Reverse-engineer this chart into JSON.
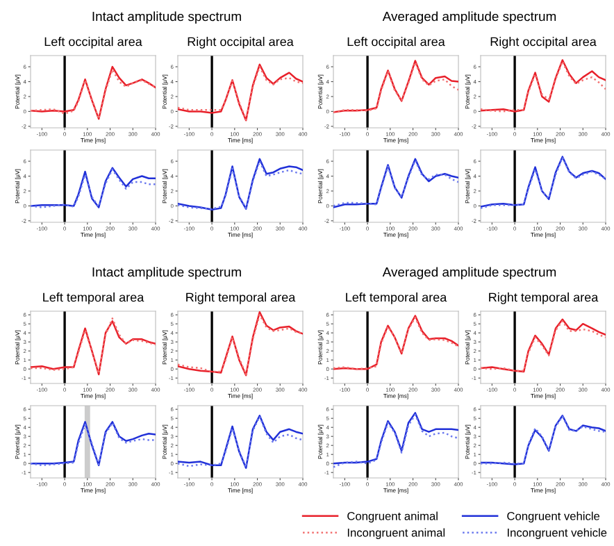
{
  "chart_data": [
    {
      "type": "line",
      "subtitle": "Intact amplitude spectrum",
      "title": "Left occipital area",
      "xlabel": "Time [ms]",
      "ylabel": "Potential [μV]",
      "x": [
        -150,
        -100,
        -50,
        0,
        40,
        60,
        90,
        120,
        150,
        180,
        210,
        240,
        270,
        300,
        340,
        370,
        400
      ],
      "xlim": [
        -150,
        400
      ],
      "xticks": [
        -100,
        0,
        100,
        200,
        300,
        400
      ],
      "ylim": [
        -2.2,
        7.5
      ],
      "yticks": [
        -2,
        0,
        2,
        4,
        6
      ],
      "ref_lines": [
        {
          "axis": "x",
          "value": 0,
          "color": "#000000"
        }
      ],
      "series": [
        {
          "color": "#e8202a",
          "line_style": "solid",
          "values": [
            0.1,
            0,
            0.1,
            0,
            0.2,
            1.5,
            4.3,
            1.5,
            -1,
            3,
            6,
            4.5,
            3.5,
            3.8,
            4.3,
            3.8,
            3.2
          ]
        },
        {
          "color": "#f27070",
          "line_style": "dotted",
          "values": [
            0.1,
            0.2,
            0.3,
            -0.3,
            0.1,
            1.3,
            4.2,
            1.6,
            -1,
            2.8,
            5.6,
            4.0,
            3.3,
            3.8,
            4.2,
            3.7,
            3.3
          ]
        }
      ]
    },
    {
      "type": "line",
      "title": "Right occipital area",
      "xlabel": "Time [ms]",
      "ylabel": "Potential [μV]",
      "x": [
        -150,
        -100,
        -50,
        0,
        40,
        60,
        90,
        120,
        150,
        180,
        210,
        240,
        270,
        300,
        340,
        370,
        400
      ],
      "xlim": [
        -150,
        400
      ],
      "xticks": [
        -100,
        0,
        100,
        200,
        300,
        400
      ],
      "ylim": [
        -2.2,
        7.5
      ],
      "yticks": [
        -2,
        0,
        2,
        4,
        6
      ],
      "ref_lines": [
        {
          "axis": "x",
          "value": 0,
          "color": "#000000"
        }
      ],
      "series": [
        {
          "color": "#e8202a",
          "line_style": "solid",
          "values": [
            0.3,
            0,
            0,
            -0.2,
            0,
            1.5,
            4.2,
            1,
            -1.2,
            3.5,
            6.3,
            4.5,
            3.7,
            4.5,
            5.2,
            4.4,
            4
          ]
        },
        {
          "color": "#f27070",
          "line_style": "dotted",
          "values": [
            0.5,
            0.2,
            0.2,
            0.2,
            0.2,
            1.4,
            4.1,
            1.2,
            -1.1,
            3.3,
            6,
            4.2,
            3.6,
            4.3,
            4.5,
            4,
            3.8
          ]
        }
      ]
    },
    {
      "type": "line",
      "subtitle": "Averaged amplitude spectrum",
      "title": "Left occipital area",
      "xlabel": "Time [ms]",
      "ylabel": "Potential [μV]",
      "x": [
        -150,
        -100,
        -50,
        0,
        40,
        60,
        90,
        120,
        150,
        180,
        210,
        240,
        270,
        300,
        340,
        370,
        400
      ],
      "xlim": [
        -150,
        400
      ],
      "xticks": [
        -100,
        0,
        100,
        200,
        300,
        400
      ],
      "ylim": [
        -2.2,
        7.5
      ],
      "yticks": [
        -2,
        0,
        2,
        4,
        6
      ],
      "ref_lines": [
        {
          "axis": "x",
          "value": 0,
          "color": "#000000"
        }
      ],
      "series": [
        {
          "color": "#e8202a",
          "line_style": "solid",
          "values": [
            -0.1,
            0.1,
            0.1,
            0.2,
            0.5,
            3,
            5.5,
            3,
            1.4,
            4,
            6.8,
            4.5,
            3.6,
            4.5,
            4.7,
            4.1,
            4
          ]
        },
        {
          "color": "#f27070",
          "line_style": "dotted",
          "values": [
            -0.1,
            0.2,
            0.2,
            0.1,
            0.4,
            2.8,
            5.4,
            2.8,
            1.5,
            3.8,
            6.6,
            4.3,
            3.5,
            4.1,
            4.3,
            3.4,
            2.9
          ]
        }
      ]
    },
    {
      "type": "line",
      "title": "Right occipital area",
      "xlabel": "Time [ms]",
      "ylabel": "Potential [μV]",
      "x": [
        -150,
        -100,
        -50,
        0,
        40,
        60,
        90,
        120,
        150,
        180,
        210,
        240,
        270,
        300,
        340,
        370,
        400
      ],
      "xlim": [
        -150,
        400
      ],
      "xticks": [
        -100,
        0,
        100,
        200,
        300,
        400
      ],
      "ylim": [
        -2.2,
        7.5
      ],
      "yticks": [
        -2,
        0,
        2,
        4,
        6
      ],
      "ref_lines": [
        {
          "axis": "x",
          "value": 0,
          "color": "#000000"
        }
      ],
      "series": [
        {
          "color": "#e8202a",
          "line_style": "solid",
          "values": [
            0.1,
            0.2,
            0.3,
            0,
            0.2,
            2.8,
            5.2,
            2,
            1.3,
            4.5,
            6.9,
            5,
            3.8,
            4.6,
            5.4,
            4.6,
            4.2
          ]
        },
        {
          "color": "#f27070",
          "line_style": "dotted",
          "values": [
            0.3,
            0.1,
            0,
            0.2,
            0.2,
            2.6,
            5,
            2.3,
            1.6,
            4.3,
            6.7,
            4.7,
            3.7,
            4.2,
            4.6,
            3.9,
            3.0
          ]
        }
      ]
    },
    {
      "type": "line",
      "xlabel": "Time [ms]",
      "ylabel": "Potential [μV]",
      "x": [
        -150,
        -100,
        -50,
        0,
        40,
        60,
        90,
        120,
        150,
        180,
        210,
        240,
        270,
        300,
        340,
        370,
        400
      ],
      "xlim": [
        -150,
        400
      ],
      "xticks": [
        -100,
        0,
        100,
        200,
        300,
        400
      ],
      "ylim": [
        -2.2,
        7.5
      ],
      "yticks": [
        -2,
        0,
        2,
        4,
        6
      ],
      "ref_lines": [
        {
          "axis": "x",
          "value": 0,
          "color": "#000000"
        }
      ],
      "series": [
        {
          "color": "#2030d8",
          "line_style": "solid",
          "values": [
            0,
            0.1,
            0.1,
            0.1,
            0,
            1.5,
            4.6,
            1,
            -0.2,
            3.3,
            5.1,
            3.8,
            2.6,
            3.6,
            4,
            3.7,
            3.7
          ]
        },
        {
          "color": "#6a78ee",
          "line_style": "dotted",
          "values": [
            0,
            -0.2,
            0,
            0.2,
            -0.1,
            1.2,
            4.2,
            1.2,
            -0.1,
            3,
            4.9,
            3.5,
            2.3,
            3.2,
            3.2,
            2.9,
            2.9
          ]
        }
      ]
    },
    {
      "type": "line",
      "xlabel": "Time [ms]",
      "ylabel": "Potential [μV]",
      "x": [
        -150,
        -100,
        -50,
        0,
        40,
        60,
        90,
        120,
        150,
        180,
        210,
        240,
        270,
        300,
        340,
        370,
        400
      ],
      "xlim": [
        -150,
        400
      ],
      "xticks": [
        -100,
        0,
        100,
        200,
        300,
        400
      ],
      "ylim": [
        -2.2,
        7.5
      ],
      "yticks": [
        -2,
        0,
        2,
        4,
        6
      ],
      "ref_lines": [
        {
          "axis": "x",
          "value": 0,
          "color": "#000000"
        }
      ],
      "series": [
        {
          "color": "#2030d8",
          "line_style": "solid",
          "values": [
            0.3,
            0,
            -0.2,
            -0.5,
            -0.3,
            1.5,
            5.3,
            1.2,
            -0.4,
            3.5,
            6.3,
            4.3,
            4.5,
            5,
            5.3,
            5.2,
            4.8
          ]
        },
        {
          "color": "#6a78ee",
          "line_style": "dotted",
          "values": [
            0.1,
            -0.2,
            -0.3,
            -0.4,
            -0.1,
            1.3,
            5,
            1.3,
            -0.3,
            3.3,
            6,
            4,
            4.2,
            4.5,
            4.8,
            4.5,
            4.3
          ]
        }
      ]
    },
    {
      "type": "line",
      "xlabel": "Time [ms]",
      "ylabel": "Potential [μV]",
      "x": [
        -150,
        -100,
        -50,
        0,
        40,
        60,
        90,
        120,
        150,
        180,
        210,
        240,
        270,
        300,
        340,
        370,
        400
      ],
      "xlim": [
        -150,
        400
      ],
      "xticks": [
        -100,
        0,
        100,
        200,
        300,
        400
      ],
      "ylim": [
        -2.2,
        7.5
      ],
      "yticks": [
        -2,
        0,
        2,
        4,
        6
      ],
      "ref_lines": [
        {
          "axis": "x",
          "value": 0,
          "color": "#000000"
        }
      ],
      "series": [
        {
          "color": "#2030d8",
          "line_style": "solid",
          "values": [
            -0.2,
            0.2,
            0.2,
            0.3,
            0.3,
            2.5,
            5.5,
            2.5,
            1.1,
            4,
            6.3,
            4.3,
            3.3,
            4,
            4.3,
            4,
            3.8
          ]
        },
        {
          "color": "#6a78ee",
          "line_style": "dotted",
          "values": [
            0,
            0.4,
            0.4,
            0.3,
            0.2,
            2.3,
            5.3,
            2.4,
            1.2,
            3.8,
            6.1,
            4.1,
            3.6,
            4.2,
            4.2,
            3.6,
            3.2
          ]
        }
      ]
    },
    {
      "type": "line",
      "xlabel": "Time [ms]",
      "ylabel": "Potential [μV]",
      "x": [
        -150,
        -100,
        -50,
        0,
        40,
        60,
        90,
        120,
        150,
        180,
        210,
        240,
        270,
        300,
        340,
        370,
        400
      ],
      "xlim": [
        -150,
        400
      ],
      "xticks": [
        -100,
        0,
        100,
        200,
        300,
        400
      ],
      "ylim": [
        -2.2,
        7.5
      ],
      "yticks": [
        -2,
        0,
        2,
        4,
        6
      ],
      "ref_lines": [
        {
          "axis": "x",
          "value": 0,
          "color": "#000000"
        }
      ],
      "series": [
        {
          "color": "#2030d8",
          "line_style": "solid",
          "values": [
            -0.1,
            0.2,
            0.3,
            0.1,
            0.2,
            2.5,
            5.2,
            2,
            0.9,
            4.5,
            6.6,
            4.6,
            3.8,
            4.4,
            4.7,
            4.4,
            3.6
          ]
        },
        {
          "color": "#6a78ee",
          "line_style": "dotted",
          "values": [
            -0.3,
            0.1,
            0.1,
            0.1,
            0.2,
            2.3,
            4.9,
            2,
            1,
            4.2,
            6.5,
            4.5,
            3.7,
            4.2,
            4.6,
            4.2,
            3.6
          ]
        }
      ]
    },
    {
      "type": "line",
      "subtitle": "Intact amplitude spectrum",
      "title": "Left temporal area",
      "xlabel": "Time [ms]",
      "ylabel": "Potential [μV]",
      "legend": "bottom right",
      "x": [
        -150,
        -100,
        -50,
        0,
        40,
        60,
        90,
        120,
        150,
        180,
        210,
        240,
        270,
        300,
        340,
        370,
        400
      ],
      "xlim": [
        -150,
        400
      ],
      "xticks": [
        -100,
        0,
        100,
        200,
        300,
        400
      ],
      "ylim": [
        -1.6,
        6.4
      ],
      "yticks": [
        -1,
        0,
        1,
        2,
        3,
        4,
        5,
        6
      ],
      "ref_lines": [
        {
          "axis": "x",
          "value": 0,
          "color": "#000000"
        }
      ],
      "series": [
        {
          "name": "Congruent animal",
          "color": "#e8202a",
          "line_style": "solid",
          "values": [
            0.2,
            0.3,
            0,
            0.2,
            0.2,
            2,
            4.5,
            2,
            -0.6,
            4,
            5.3,
            3.5,
            2.8,
            3.3,
            3.3,
            3,
            2.8
          ]
        },
        {
          "name": "Incongruent animal",
          "color": "#f27070",
          "line_style": "dotted",
          "values": [
            0.1,
            0.1,
            -0.1,
            0,
            0.2,
            1.8,
            4.3,
            2,
            -0.5,
            3.8,
            5.6,
            3.8,
            2.8,
            3.2,
            3.1,
            2.9,
            2.7
          ]
        }
      ]
    },
    {
      "type": "line",
      "title": "Right temporal area",
      "xlabel": "Time [ms]",
      "ylabel": "Potential [μV]",
      "x": [
        -150,
        -100,
        -50,
        0,
        40,
        60,
        90,
        120,
        150,
        180,
        210,
        240,
        270,
        300,
        340,
        370,
        400
      ],
      "xlim": [
        -150,
        400
      ],
      "xticks": [
        -100,
        0,
        100,
        200,
        300,
        400
      ],
      "ylim": [
        -1.6,
        6.4
      ],
      "yticks": [
        -1,
        0,
        1,
        2,
        3,
        4,
        5,
        6
      ],
      "ref_lines": [
        {
          "axis": "x",
          "value": 0,
          "color": "#000000"
        }
      ],
      "series": [
        {
          "color": "#e8202a",
          "line_style": "solid",
          "values": [
            0.3,
            0,
            -0.2,
            -0.3,
            -0.4,
            1.2,
            3.6,
            1,
            -0.7,
            3.5,
            6.3,
            4.8,
            4.3,
            4.6,
            4.7,
            4.2,
            3.9
          ]
        },
        {
          "color": "#f27070",
          "line_style": "dotted",
          "values": [
            0.5,
            0.2,
            0.1,
            -0.3,
            -0.3,
            1,
            3.5,
            1.2,
            -0.6,
            3.3,
            6,
            4.6,
            4.2,
            4.3,
            4.5,
            4.1,
            3.9
          ]
        }
      ]
    },
    {
      "type": "line",
      "subtitle": "Averaged amplitude spectrum",
      "title": "Left temporal area",
      "xlabel": "Time [ms]",
      "ylabel": "Potential [μV]",
      "x": [
        -150,
        -100,
        -50,
        0,
        40,
        60,
        90,
        120,
        150,
        180,
        210,
        240,
        270,
        300,
        340,
        370,
        400
      ],
      "xlim": [
        -150,
        400
      ],
      "xticks": [
        -100,
        0,
        100,
        200,
        300,
        400
      ],
      "ylim": [
        -1.6,
        6.4
      ],
      "yticks": [
        -1,
        0,
        1,
        2,
        3,
        4,
        5,
        6
      ],
      "ref_lines": [
        {
          "axis": "x",
          "value": 0,
          "color": "#000000"
        }
      ],
      "series": [
        {
          "color": "#e8202a",
          "line_style": "solid",
          "values": [
            0,
            0.1,
            0,
            0,
            0.5,
            3,
            4.8,
            3.5,
            1.7,
            4.5,
            5.9,
            4.2,
            3.3,
            3.4,
            3.4,
            3.1,
            2.6
          ]
        },
        {
          "color": "#f27070",
          "line_style": "dotted",
          "values": [
            0.1,
            0.2,
            0,
            0.1,
            0.3,
            2.8,
            4.7,
            3.5,
            1.8,
            4.4,
            5.7,
            4,
            3.2,
            3.3,
            3.2,
            2.9,
            2.5
          ]
        }
      ]
    },
    {
      "type": "line",
      "title": "Right temporal area",
      "xlabel": "Time [ms]",
      "ylabel": "Potential [μV]",
      "x": [
        -150,
        -100,
        -50,
        0,
        40,
        60,
        90,
        120,
        150,
        180,
        210,
        240,
        270,
        300,
        340,
        370,
        400
      ],
      "xlim": [
        -150,
        400
      ],
      "xticks": [
        -100,
        0,
        100,
        200,
        300,
        400
      ],
      "ylim": [
        -1.6,
        6.4
      ],
      "yticks": [
        -1,
        0,
        1,
        2,
        3,
        4,
        5,
        6
      ],
      "ref_lines": [
        {
          "axis": "x",
          "value": 0,
          "color": "#000000"
        }
      ],
      "series": [
        {
          "color": "#e8202a",
          "line_style": "solid",
          "values": [
            0.1,
            0.2,
            0,
            -0.2,
            -0.3,
            2,
            3.7,
            2.8,
            1.6,
            4.5,
            5.5,
            4.5,
            4.3,
            5,
            4.5,
            4.1,
            3.8
          ]
        },
        {
          "color": "#f27070",
          "line_style": "dotted",
          "values": [
            0.1,
            0,
            0.1,
            -0.2,
            -0.2,
            1.8,
            3.5,
            2.6,
            1.5,
            4.3,
            5.3,
            4.2,
            4.2,
            4.4,
            4.2,
            3.8,
            3.5
          ]
        }
      ]
    },
    {
      "type": "line",
      "xlabel": "Time [ms]",
      "ylabel": "Potential [μV]",
      "legend": "bottom right",
      "x": [
        -150,
        -100,
        -50,
        0,
        40,
        60,
        90,
        120,
        150,
        180,
        210,
        240,
        270,
        300,
        340,
        370,
        400
      ],
      "xlim": [
        -150,
        400
      ],
      "xticks": [
        -100,
        0,
        100,
        200,
        300,
        400
      ],
      "ylim": [
        -1.6,
        6.4
      ],
      "yticks": [
        -1,
        0,
        1,
        2,
        3,
        4,
        5,
        6
      ],
      "ref_lines": [
        {
          "axis": "x",
          "value": 0,
          "color": "#000000"
        }
      ],
      "bands": [
        {
          "axis": "x",
          "from": 88,
          "to": 112,
          "color": "#cccccc"
        }
      ],
      "series": [
        {
          "name": "Congruent vehicle",
          "color": "#2030d8",
          "line_style": "solid",
          "values": [
            0,
            0,
            0,
            0.1,
            0.2,
            2.5,
            4.6,
            2,
            -0.2,
            3.5,
            4.6,
            3,
            2.5,
            2.7,
            3.1,
            3.3,
            3.2
          ]
        },
        {
          "name": "Incongruent vehicle",
          "color": "#6a78ee",
          "line_style": "dotted",
          "values": [
            0,
            -0.2,
            -0.1,
            0,
            0.1,
            2.2,
            4.3,
            2.2,
            -0.1,
            3.3,
            4.5,
            2.8,
            2.3,
            2.5,
            2.7,
            2.6,
            2.6
          ]
        }
      ]
    },
    {
      "type": "line",
      "xlabel": "Time [ms]",
      "ylabel": "Potential [μV]",
      "x": [
        -150,
        -100,
        -50,
        0,
        40,
        60,
        90,
        120,
        150,
        180,
        210,
        240,
        270,
        300,
        340,
        370,
        400
      ],
      "xlim": [
        -150,
        400
      ],
      "xticks": [
        -100,
        0,
        100,
        200,
        300,
        400
      ],
      "ylim": [
        -1.6,
        6.4
      ],
      "yticks": [
        -1,
        0,
        1,
        2,
        3,
        4,
        5,
        6
      ],
      "ref_lines": [
        {
          "axis": "x",
          "value": 0,
          "color": "#000000"
        }
      ],
      "series": [
        {
          "color": "#2030d8",
          "line_style": "solid",
          "values": [
            0.2,
            0.1,
            0.2,
            -0.2,
            -0.2,
            1.5,
            4.1,
            1.3,
            -0.5,
            3.8,
            5.3,
            3.5,
            2.6,
            3.5,
            3.8,
            3.5,
            3.3
          ]
        },
        {
          "color": "#6a78ee",
          "line_style": "dotted",
          "values": [
            0,
            -0.3,
            -0.1,
            -0.2,
            0,
            1.3,
            3.9,
            1.4,
            -0.4,
            3.6,
            5.2,
            3.3,
            2.3,
            3.0,
            3.2,
            2.8,
            2.6
          ]
        }
      ]
    },
    {
      "type": "line",
      "xlabel": "Time [ms]",
      "ylabel": "Potential [μV]",
      "x": [
        -150,
        -100,
        -50,
        0,
        40,
        60,
        90,
        120,
        150,
        180,
        210,
        240,
        270,
        300,
        340,
        370,
        400
      ],
      "xlim": [
        -150,
        400
      ],
      "xticks": [
        -100,
        0,
        100,
        200,
        300,
        400
      ],
      "ylim": [
        -1.6,
        6.4
      ],
      "yticks": [
        -1,
        0,
        1,
        2,
        3,
        4,
        5,
        6
      ],
      "ref_lines": [
        {
          "axis": "x",
          "value": 0,
          "color": "#000000"
        }
      ],
      "series": [
        {
          "color": "#2030d8",
          "line_style": "solid",
          "values": [
            0,
            0.1,
            0.1,
            0.2,
            0.5,
            2.5,
            4.7,
            3.5,
            1.4,
            4.5,
            5.6,
            3.8,
            3.5,
            3.8,
            3.8,
            3.8,
            3.7
          ]
        },
        {
          "color": "#6a78ee",
          "line_style": "dotted",
          "values": [
            -0.4,
            0.1,
            0.2,
            0,
            0.4,
            2.3,
            4.5,
            3.4,
            1.2,
            4.2,
            5.4,
            3.6,
            3.0,
            3.3,
            3.4,
            3.0,
            2.8
          ]
        }
      ]
    },
    {
      "type": "line",
      "xlabel": "Time [ms]",
      "ylabel": "Potential [μV]",
      "x": [
        -150,
        -100,
        -50,
        0,
        40,
        60,
        90,
        120,
        150,
        180,
        210,
        240,
        270,
        300,
        340,
        370,
        400
      ],
      "xlim": [
        -150,
        400
      ],
      "xticks": [
        -100,
        0,
        100,
        200,
        300,
        400
      ],
      "ylim": [
        -1.6,
        6.4
      ],
      "yticks": [
        -1,
        0,
        1,
        2,
        3,
        4,
        5,
        6
      ],
      "ref_lines": [
        {
          "axis": "x",
          "value": 0,
          "color": "#000000"
        }
      ],
      "series": [
        {
          "color": "#2030d8",
          "line_style": "solid",
          "values": [
            0.1,
            0.1,
            0,
            -0.1,
            0,
            2,
            3.7,
            2.9,
            1.4,
            4.2,
            5.3,
            3.8,
            3.6,
            4.2,
            4,
            3.9,
            3.6
          ]
        },
        {
          "color": "#6a78ee",
          "line_style": "dotted",
          "values": [
            0,
            0,
            0.1,
            0,
            0,
            2.1,
            3.9,
            3.0,
            1.5,
            4.1,
            5.2,
            3.7,
            3.6,
            4.1,
            3.8,
            3.6,
            3.5
          ]
        }
      ]
    }
  ]
}
